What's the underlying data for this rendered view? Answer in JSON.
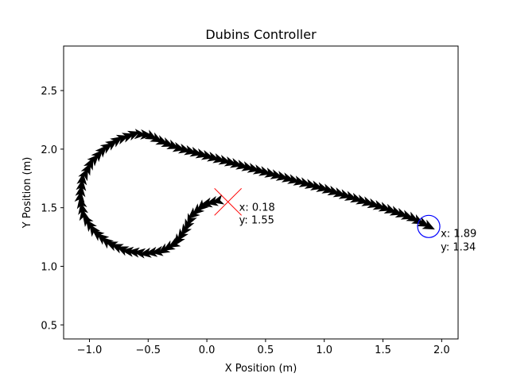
{
  "chart_data": {
    "type": "scatter",
    "title": "Dubins Controller",
    "xlabel": "X Position (m)",
    "ylabel": "Y Position (m)",
    "xlim": [
      -1.22,
      2.14
    ],
    "ylim": [
      0.38,
      2.88
    ],
    "xticks": [
      -1.0,
      -0.5,
      0.0,
      0.5,
      1.0,
      1.5,
      2.0
    ],
    "xtick_labels": [
      "−1.0",
      "−0.5",
      "0.0",
      "0.5",
      "1.0",
      "1.5",
      "2.0"
    ],
    "yticks": [
      0.5,
      1.0,
      1.5,
      2.0,
      2.5
    ],
    "ytick_labels": [
      "0.5",
      "1.0",
      "1.5",
      "2.0",
      "2.5"
    ],
    "grid": false,
    "path": {
      "marker": "arrow",
      "color": "#000000",
      "points": [
        [
          0.1,
          1.56
        ],
        [
          -0.02,
          1.53
        ],
        [
          -0.12,
          1.44
        ],
        [
          -0.18,
          1.32
        ],
        [
          -0.26,
          1.2
        ],
        [
          -0.38,
          1.13
        ],
        [
          -0.52,
          1.11
        ],
        [
          -0.68,
          1.13
        ],
        [
          -0.84,
          1.2
        ],
        [
          -0.96,
          1.3
        ],
        [
          -1.05,
          1.43
        ],
        [
          -1.08,
          1.58
        ],
        [
          -1.06,
          1.74
        ],
        [
          -0.99,
          1.88
        ],
        [
          -0.88,
          2.0
        ],
        [
          -0.76,
          2.08
        ],
        [
          -0.62,
          2.13
        ],
        [
          -0.5,
          2.12
        ],
        [
          -0.4,
          2.07
        ],
        [
          -0.25,
          2.01
        ],
        [
          0.0,
          1.94
        ],
        [
          0.25,
          1.87
        ],
        [
          0.5,
          1.8
        ],
        [
          0.75,
          1.73
        ],
        [
          1.0,
          1.66
        ],
        [
          1.25,
          1.58
        ],
        [
          1.5,
          1.5
        ],
        [
          1.75,
          1.41
        ],
        [
          1.89,
          1.34
        ]
      ]
    },
    "start": {
      "x": 0.18,
      "y": 1.55,
      "marker": "x",
      "color": "#ff0000",
      "label_x": "x: 0.18",
      "label_y": "y: 1.55"
    },
    "goal": {
      "x": 1.89,
      "y": 1.34,
      "marker": "circle",
      "color": "#0000ff",
      "label_x": "x: 1.89",
      "label_y": "y: 1.34"
    }
  }
}
